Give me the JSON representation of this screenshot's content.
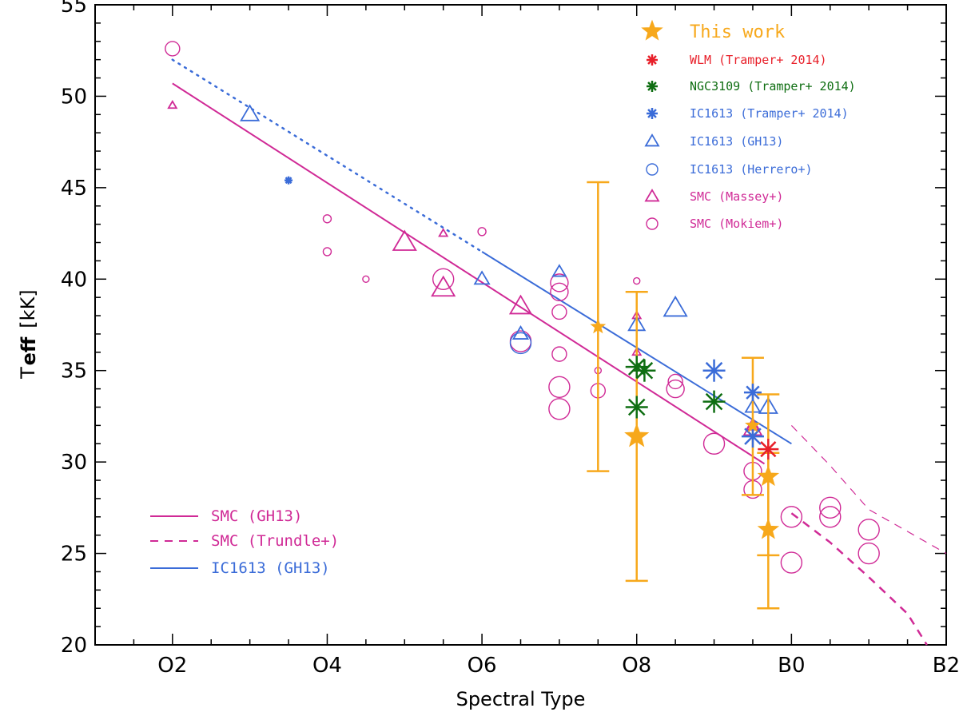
{
  "chart_data": {
    "type": "scatter",
    "xlabel": "Spectral Type",
    "ylabel_main": "T",
    "ylabel_sub": "eff",
    "ylabel_unit": "[kK]",
    "x_ticks": [
      {
        "value": 2,
        "label": "O2"
      },
      {
        "value": 4,
        "label": "O4"
      },
      {
        "value": 6,
        "label": "O6"
      },
      {
        "value": 8,
        "label": "O8"
      },
      {
        "value": 10,
        "label": "B0"
      },
      {
        "value": 12,
        "label": "B2"
      }
    ],
    "y_ticks": [
      20,
      25,
      30,
      35,
      40,
      45,
      50,
      55
    ],
    "xlim": [
      1,
      12
    ],
    "ylim": [
      20,
      55
    ],
    "colors": {
      "orange": "#f7a81b",
      "red": "#e8202a",
      "green": "#0f6e12",
      "blue": "#3b6cd8",
      "magenta": "#d02a96"
    },
    "legend_top": [
      {
        "label": "This work",
        "marker": "star",
        "color": "#f7a81b"
      },
      {
        "label": "WLM (Tramper+ 2014)",
        "marker": "asterisk",
        "color": "#e8202a"
      },
      {
        "label": "NGC3109 (Tramper+ 2014)",
        "marker": "asterisk",
        "color": "#0f6e12"
      },
      {
        "label": "IC1613 (Tramper+ 2014)",
        "marker": "asterisk",
        "color": "#3b6cd8"
      },
      {
        "label": "IC1613 (GH13)",
        "marker": "triangle",
        "color": "#3b6cd8"
      },
      {
        "label": "IC1613  (Herrero+)",
        "marker": "circle",
        "color": "#3b6cd8"
      },
      {
        "label": "SMC (Massey+)",
        "marker": "triangle",
        "color": "#d02a96"
      },
      {
        "label": "SMC (Mokiem+)",
        "marker": "circle",
        "color": "#d02a96"
      }
    ],
    "legend_bottom": [
      {
        "label": "SMC (GH13)",
        "style": "solid",
        "color": "#d02a96"
      },
      {
        "label": "SMC (Trundle+)",
        "style": "dashed",
        "color": "#d02a96"
      },
      {
        "label": "IC1613 (GH13)",
        "style": "solid",
        "color": "#3b6cd8"
      }
    ],
    "lines": [
      {
        "name": "SMC (GH13)",
        "color": "#d02a96",
        "style": "solid",
        "width": 2,
        "points": [
          [
            2,
            50.7
          ],
          [
            9.65,
            29.9
          ]
        ]
      },
      {
        "name": "IC1613 (GH13) extrapolated",
        "color": "#3b6cd8",
        "style": "dotted",
        "width": 2.5,
        "points": [
          [
            2,
            52.0
          ],
          [
            6,
            41.5
          ]
        ]
      },
      {
        "name": "IC1613 (GH13)",
        "color": "#3b6cd8",
        "style": "solid",
        "width": 2,
        "points": [
          [
            6,
            41.5
          ],
          [
            10,
            31.0
          ]
        ]
      },
      {
        "name": "SMC (Trundle+) thick",
        "color": "#d02a96",
        "style": "dashed",
        "width": 2.5,
        "points": [
          [
            10,
            27.2
          ],
          [
            10.5,
            25.6
          ],
          [
            11,
            23.7
          ],
          [
            11.5,
            21.7
          ],
          [
            11.75,
            20.0
          ]
        ]
      },
      {
        "name": "SMC (Trundle+) thin",
        "color": "#d02a96",
        "style": "dashed",
        "width": 1.2,
        "points": [
          [
            10,
            32.0
          ],
          [
            10.5,
            29.8
          ],
          [
            11,
            27.4
          ],
          [
            12,
            25.0
          ]
        ]
      }
    ],
    "this_work": [
      {
        "x": 7.5,
        "y": 37.4,
        "err_lo": 29.5,
        "err_hi": 45.3,
        "size": 9
      },
      {
        "x": 8.0,
        "y": 31.4,
        "err_lo": 23.5,
        "err_hi": 39.3,
        "size": 15
      },
      {
        "x": 9.5,
        "y": 32.0,
        "err_lo": 28.2,
        "err_hi": 35.7,
        "size": 9
      },
      {
        "x": 9.7,
        "y": 29.2,
        "err_lo": 24.9,
        "err_hi": 33.7,
        "size": 13
      },
      {
        "x": 9.7,
        "y": 26.3,
        "err_lo": 22.0,
        "err_hi": 30.5,
        "size": 13
      }
    ],
    "wlm_tramper": [
      {
        "x": 9.7,
        "y": 30.7,
        "size": 13
      }
    ],
    "ngc3109_tramper": [
      {
        "x": 8.0,
        "y": 35.2,
        "size": 14
      },
      {
        "x": 8.1,
        "y": 35.0,
        "size": 14
      },
      {
        "x": 8.0,
        "y": 33.0,
        "size": 14
      },
      {
        "x": 9.0,
        "y": 33.3,
        "size": 14
      }
    ],
    "ic1613_tramper": [
      {
        "x": 3.5,
        "y": 45.4,
        "size": 5
      },
      {
        "x": 9.0,
        "y": 35.0,
        "size": 14
      },
      {
        "x": 9.5,
        "y": 33.8,
        "size": 11
      },
      {
        "x": 9.5,
        "y": 31.4,
        "size": 14
      }
    ],
    "ic1613_gh13_triangles": [
      {
        "x": 3.0,
        "y": 49.0,
        "size": 11
      },
      {
        "x": 6.0,
        "y": 40.0,
        "size": 9
      },
      {
        "x": 6.5,
        "y": 37.0,
        "size": 9
      },
      {
        "x": 7.0,
        "y": 40.4,
        "size": 8
      },
      {
        "x": 8.0,
        "y": 37.5,
        "size": 10
      },
      {
        "x": 8.5,
        "y": 38.4,
        "size": 14
      },
      {
        "x": 9.5,
        "y": 33.0,
        "size": 9
      },
      {
        "x": 9.7,
        "y": 33.0,
        "size": 11
      }
    ],
    "ic1613_herrero_circles": [
      {
        "x": 6.5,
        "y": 36.5,
        "r": 13
      }
    ],
    "smc_massey_triangles": [
      {
        "x": 2.0,
        "y": 49.5,
        "size": 5
      },
      {
        "x": 5.0,
        "y": 42.0,
        "size": 14
      },
      {
        "x": 5.5,
        "y": 42.5,
        "size": 5
      },
      {
        "x": 5.5,
        "y": 39.5,
        "size": 14
      },
      {
        "x": 6.5,
        "y": 38.5,
        "size": 13
      },
      {
        "x": 8.0,
        "y": 38.0,
        "size": 5
      },
      {
        "x": 8.0,
        "y": 36.0,
        "size": 5
      },
      {
        "x": 9.5,
        "y": 32.0,
        "size": 8
      },
      {
        "x": 9.5,
        "y": 31.8,
        "size": 11
      }
    ],
    "smc_mokiem_circles": [
      {
        "x": 2.0,
        "y": 52.6,
        "r": 9
      },
      {
        "x": 4.0,
        "y": 43.3,
        "r": 5
      },
      {
        "x": 4.0,
        "y": 41.5,
        "r": 5
      },
      {
        "x": 4.5,
        "y": 40.0,
        "r": 4
      },
      {
        "x": 5.5,
        "y": 40.0,
        "r": 13
      },
      {
        "x": 6.0,
        "y": 42.6,
        "r": 5
      },
      {
        "x": 6.5,
        "y": 36.6,
        "r": 13
      },
      {
        "x": 7.0,
        "y": 39.8,
        "r": 11
      },
      {
        "x": 7.0,
        "y": 39.3,
        "r": 11
      },
      {
        "x": 7.0,
        "y": 38.2,
        "r": 9
      },
      {
        "x": 7.0,
        "y": 35.9,
        "r": 9
      },
      {
        "x": 7.0,
        "y": 34.1,
        "r": 13
      },
      {
        "x": 7.0,
        "y": 32.9,
        "r": 13
      },
      {
        "x": 7.5,
        "y": 35.0,
        "r": 4
      },
      {
        "x": 7.5,
        "y": 33.9,
        "r": 9
      },
      {
        "x": 8.0,
        "y": 39.9,
        "r": 4
      },
      {
        "x": 8.5,
        "y": 34.0,
        "r": 11
      },
      {
        "x": 8.5,
        "y": 34.4,
        "r": 9
      },
      {
        "x": 9.0,
        "y": 31.0,
        "r": 13
      },
      {
        "x": 9.5,
        "y": 29.5,
        "r": 11
      },
      {
        "x": 9.5,
        "y": 28.5,
        "r": 11
      },
      {
        "x": 10.0,
        "y": 27.0,
        "r": 13
      },
      {
        "x": 10.0,
        "y": 24.5,
        "r": 13
      },
      {
        "x": 10.5,
        "y": 27.5,
        "r": 13
      },
      {
        "x": 10.5,
        "y": 27.0,
        "r": 13
      },
      {
        "x": 11.0,
        "y": 26.3,
        "r": 13
      },
      {
        "x": 11.0,
        "y": 25.0,
        "r": 13
      }
    ]
  }
}
